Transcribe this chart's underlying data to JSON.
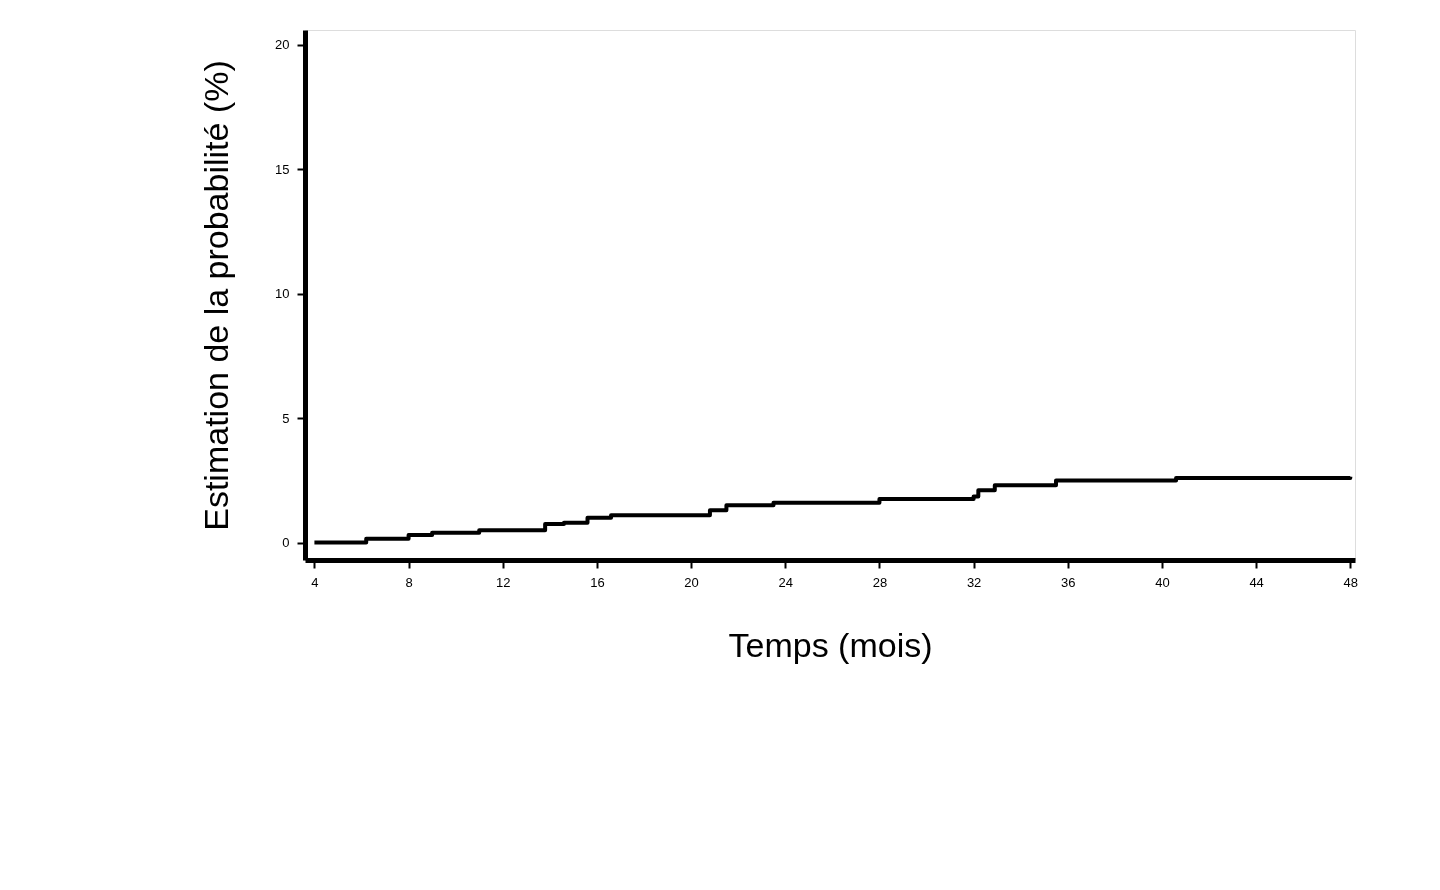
{
  "chart_data": {
    "type": "step",
    "xlabel": "Temps    (mois)",
    "ylabel": "Estimation de la probabilité  (%)",
    "x": [
      4,
      6.2,
      8,
      9,
      11,
      13.8,
      14.6,
      15.6,
      16.6,
      20.8,
      21.5,
      23.5,
      28,
      32,
      32.2,
      32.9,
      35.5,
      40.6,
      48
    ],
    "series": [
      {
        "color": "#000000",
        "values": [
          0,
          0.15,
          0.3,
          0.4,
          0.5,
          0.75,
          0.8,
          1.0,
          1.1,
          1.3,
          1.5,
          1.6,
          1.75,
          1.85,
          2.1,
          2.3,
          2.5,
          2.6,
          2.65
        ]
      }
    ],
    "xlim": [
      3.6,
      48.2
    ],
    "xticks": [
      4,
      8,
      12,
      16,
      20,
      24,
      28,
      32,
      36,
      40,
      44,
      48
    ],
    "ylim": [
      -0.7,
      20.6
    ],
    "yticks": [
      0,
      5,
      10,
      15,
      20
    ],
    "grid": false,
    "legend": false,
    "marker": "none",
    "line_style": "solid"
  }
}
